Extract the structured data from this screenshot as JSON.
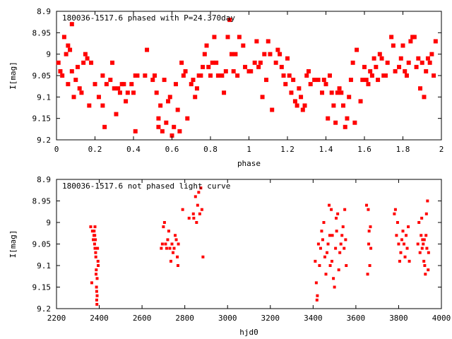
{
  "colors": {
    "points": "#ff0000",
    "axes": "#000000",
    "background": "#ffffff"
  },
  "chart_data": [
    {
      "type": "scatter",
      "title": "180036-1517.6 phased with P=24.370day",
      "xlabel": "phase",
      "ylabel": "I[mag]",
      "xlim": [
        0,
        2
      ],
      "ylim": [
        8.9,
        9.2
      ],
      "y_inverted": true,
      "grid": false,
      "x_ticks": [
        "0",
        "0.2",
        "0.4",
        "0.6",
        "0.8",
        "1",
        "1.2",
        "1.4",
        "1.6",
        "1.8",
        "2"
      ],
      "y_ticks": [
        "8.9",
        "8.95",
        "9",
        "9.05",
        "9.1",
        "9.15",
        "9.2"
      ],
      "points": [
        [
          0.01,
          9.02
        ],
        [
          0.02,
          9.04
        ],
        [
          0.03,
          9.05
        ],
        [
          0.04,
          8.96
        ],
        [
          0.05,
          9.0
        ],
        [
          0.06,
          8.98
        ],
        [
          0.06,
          9.07
        ],
        [
          0.07,
          8.99
        ],
        [
          0.08,
          8.93
        ],
        [
          0.08,
          9.04
        ],
        [
          0.09,
          9.1
        ],
        [
          0.1,
          9.06
        ],
        [
          0.11,
          9.03
        ],
        [
          0.12,
          9.08
        ],
        [
          0.13,
          9.09
        ],
        [
          0.14,
          9.02
        ],
        [
          0.15,
          9.0
        ],
        [
          0.16,
          9.01
        ],
        [
          0.17,
          9.12
        ],
        [
          0.18,
          9.02
        ],
        [
          0.2,
          9.07
        ],
        [
          0.22,
          9.1
        ],
        [
          0.24,
          9.05
        ],
        [
          0.24,
          9.12
        ],
        [
          0.25,
          9.17
        ],
        [
          0.26,
          9.07
        ],
        [
          0.28,
          9.06
        ],
        [
          0.29,
          9.02
        ],
        [
          0.3,
          9.08
        ],
        [
          0.31,
          9.14
        ],
        [
          0.32,
          9.08
        ],
        [
          0.33,
          9.09
        ],
        [
          0.34,
          9.07
        ],
        [
          0.35,
          9.07
        ],
        [
          0.36,
          9.11
        ],
        [
          0.37,
          9.09
        ],
        [
          0.39,
          9.07
        ],
        [
          0.4,
          9.09
        ],
        [
          0.41,
          9.05
        ],
        [
          0.41,
          9.18
        ],
        [
          0.42,
          9.05
        ],
        [
          0.46,
          9.05
        ],
        [
          0.47,
          8.99
        ],
        [
          0.5,
          9.06
        ],
        [
          0.51,
          9.05
        ],
        [
          0.52,
          9.09
        ],
        [
          0.53,
          9.15
        ],
        [
          0.53,
          9.17
        ],
        [
          0.54,
          9.12
        ],
        [
          0.55,
          9.18
        ],
        [
          0.56,
          9.06
        ],
        [
          0.57,
          9.16
        ],
        [
          0.58,
          9.11
        ],
        [
          0.59,
          9.1
        ],
        [
          0.6,
          9.19
        ],
        [
          0.61,
          9.17
        ],
        [
          0.62,
          9.07
        ],
        [
          0.63,
          9.13
        ],
        [
          0.64,
          9.18
        ],
        [
          0.65,
          9.02
        ],
        [
          0.66,
          9.05
        ],
        [
          0.67,
          9.04
        ],
        [
          0.68,
          9.15
        ],
        [
          0.7,
          9.07
        ],
        [
          0.71,
          9.06
        ],
        [
          0.72,
          9.1
        ],
        [
          0.73,
          9.08
        ],
        [
          0.74,
          9.05
        ],
        [
          0.75,
          9.05
        ],
        [
          0.76,
          9.03
        ],
        [
          0.77,
          9.0
        ],
        [
          0.78,
          8.98
        ],
        [
          0.79,
          9.03
        ],
        [
          0.8,
          9.05
        ],
        [
          0.81,
          9.02
        ],
        [
          0.82,
          8.96
        ],
        [
          0.83,
          9.02
        ],
        [
          0.84,
          9.05
        ],
        [
          0.85,
          9.05
        ],
        [
          0.86,
          9.05
        ],
        [
          0.87,
          9.09
        ],
        [
          0.88,
          9.04
        ],
        [
          0.89,
          8.96
        ],
        [
          0.9,
          8.92
        ],
        [
          0.91,
          9.0
        ],
        [
          0.92,
          9.04
        ],
        [
          0.93,
          9.0
        ],
        [
          0.94,
          9.05
        ],
        [
          0.95,
          8.96
        ],
        [
          0.97,
          8.98
        ],
        [
          0.98,
          9.03
        ],
        [
          1.0,
          9.04
        ],
        [
          1.01,
          9.04
        ],
        [
          1.03,
          9.02
        ],
        [
          1.04,
          8.97
        ],
        [
          1.05,
          9.03
        ],
        [
          1.06,
          9.02
        ],
        [
          1.07,
          9.1
        ],
        [
          1.08,
          9.0
        ],
        [
          1.09,
          9.06
        ],
        [
          1.1,
          8.97
        ],
        [
          1.11,
          9.0
        ],
        [
          1.12,
          9.13
        ],
        [
          1.14,
          9.02
        ],
        [
          1.15,
          8.99
        ],
        [
          1.16,
          9.0
        ],
        [
          1.17,
          9.03
        ],
        [
          1.18,
          9.05
        ],
        [
          1.19,
          9.07
        ],
        [
          1.2,
          9.01
        ],
        [
          1.21,
          9.05
        ],
        [
          1.22,
          9.09
        ],
        [
          1.23,
          9.06
        ],
        [
          1.24,
          9.11
        ],
        [
          1.25,
          9.12
        ],
        [
          1.26,
          9.08
        ],
        [
          1.27,
          9.1
        ],
        [
          1.28,
          9.13
        ],
        [
          1.29,
          9.12
        ],
        [
          1.3,
          9.05
        ],
        [
          1.31,
          9.04
        ],
        [
          1.32,
          9.07
        ],
        [
          1.34,
          9.06
        ],
        [
          1.36,
          9.06
        ],
        [
          1.38,
          9.09
        ],
        [
          1.39,
          9.06
        ],
        [
          1.4,
          9.07
        ],
        [
          1.41,
          9.15
        ],
        [
          1.42,
          9.05
        ],
        [
          1.43,
          9.09
        ],
        [
          1.44,
          9.12
        ],
        [
          1.45,
          9.16
        ],
        [
          1.46,
          9.09
        ],
        [
          1.47,
          9.08
        ],
        [
          1.48,
          9.09
        ],
        [
          1.49,
          9.12
        ],
        [
          1.5,
          9.17
        ],
        [
          1.51,
          9.15
        ],
        [
          1.52,
          9.1
        ],
        [
          1.53,
          9.06
        ],
        [
          1.54,
          9.02
        ],
        [
          1.55,
          9.16
        ],
        [
          1.56,
          8.99
        ],
        [
          1.58,
          9.11
        ],
        [
          1.59,
          9.06
        ],
        [
          1.6,
          9.03
        ],
        [
          1.61,
          9.06
        ],
        [
          1.62,
          9.07
        ],
        [
          1.63,
          9.04
        ],
        [
          1.64,
          9.05
        ],
        [
          1.65,
          9.01
        ],
        [
          1.66,
          9.03
        ],
        [
          1.67,
          9.06
        ],
        [
          1.68,
          9.0
        ],
        [
          1.69,
          9.01
        ],
        [
          1.7,
          9.05
        ],
        [
          1.71,
          9.05
        ],
        [
          1.72,
          9.02
        ],
        [
          1.74,
          8.96
        ],
        [
          1.75,
          8.98
        ],
        [
          1.76,
          9.04
        ],
        [
          1.78,
          9.03
        ],
        [
          1.79,
          9.01
        ],
        [
          1.8,
          8.98
        ],
        [
          1.81,
          9.04
        ],
        [
          1.82,
          9.05
        ],
        [
          1.83,
          9.02
        ],
        [
          1.84,
          8.97
        ],
        [
          1.85,
          8.96
        ],
        [
          1.86,
          8.96
        ],
        [
          1.87,
          9.03
        ],
        [
          1.88,
          9.01
        ],
        [
          1.89,
          9.08
        ],
        [
          1.9,
          9.02
        ],
        [
          1.91,
          9.1
        ],
        [
          1.92,
          9.04
        ],
        [
          1.93,
          9.01
        ],
        [
          1.94,
          9.02
        ],
        [
          1.95,
          9.0
        ],
        [
          1.96,
          9.05
        ],
        [
          1.97,
          8.97
        ]
      ]
    },
    {
      "type": "scatter",
      "title": "180036-1517.6 not phased light curve",
      "xlabel": "hjd0",
      "ylabel": "I[mag]",
      "xlim": [
        2200,
        4000
      ],
      "ylim": [
        8.9,
        9.2
      ],
      "y_inverted": true,
      "grid": false,
      "x_ticks": [
        "2200",
        "2400",
        "2600",
        "2800",
        "3000",
        "3200",
        "3400",
        "3600",
        "3800",
        "4000"
      ],
      "y_ticks": [
        "8.9",
        "8.95",
        "9",
        "9.05",
        "9.1",
        "9.15",
        "9.2"
      ],
      "points": [
        [
          2360,
          9.01
        ],
        [
          2365,
          9.14
        ],
        [
          2368,
          9.02
        ],
        [
          2372,
          9.04
        ],
        [
          2375,
          9.03
        ],
        [
          2378,
          9.05
        ],
        [
          2380,
          9.06
        ],
        [
          2383,
          9.07
        ],
        [
          2385,
          9.12
        ],
        [
          2387,
          9.15
        ],
        [
          2388,
          9.18
        ],
        [
          2389,
          9.19
        ],
        [
          2390,
          9.17
        ],
        [
          2392,
          9.06
        ],
        [
          2395,
          9.1
        ],
        [
          2380,
          9.01
        ],
        [
          2382,
          9.04
        ],
        [
          2384,
          9.08
        ],
        [
          2386,
          9.11
        ],
        [
          2388,
          9.16
        ],
        [
          2390,
          9.13
        ],
        [
          2394,
          9.09
        ],
        [
          2376,
          9.02
        ],
        [
          2379,
          9.03
        ],
        [
          2690,
          9.06
        ],
        [
          2695,
          9.05
        ],
        [
          2700,
          9.01
        ],
        [
          2705,
          9.0
        ],
        [
          2710,
          9.05
        ],
        [
          2715,
          9.06
        ],
        [
          2720,
          9.04
        ],
        [
          2725,
          9.02
        ],
        [
          2730,
          9.06
        ],
        [
          2735,
          9.09
        ],
        [
          2740,
          9.05
        ],
        [
          2745,
          9.07
        ],
        [
          2750,
          9.06
        ],
        [
          2755,
          9.03
        ],
        [
          2760,
          9.04
        ],
        [
          2765,
          9.08
        ],
        [
          2768,
          9.1
        ],
        [
          2770,
          9.05
        ],
        [
          2790,
          8.97
        ],
        [
          2820,
          8.99
        ],
        [
          2840,
          8.98
        ],
        [
          2850,
          8.94
        ],
        [
          2860,
          8.96
        ],
        [
          2865,
          8.93
        ],
        [
          2870,
          8.98
        ],
        [
          2875,
          8.92
        ],
        [
          2880,
          8.97
        ],
        [
          2885,
          9.08
        ],
        [
          2842,
          8.99
        ],
        [
          2855,
          9.0
        ],
        [
          3410,
          9.09
        ],
        [
          3415,
          9.14
        ],
        [
          3418,
          9.18
        ],
        [
          3420,
          9.17
        ],
        [
          3425,
          9.05
        ],
        [
          3430,
          9.1
        ],
        [
          3435,
          9.06
        ],
        [
          3440,
          9.02
        ],
        [
          3445,
          9.04
        ],
        [
          3450,
          9.0
        ],
        [
          3455,
          9.08
        ],
        [
          3460,
          9.12
        ],
        [
          3465,
          9.07
        ],
        [
          3470,
          9.05
        ],
        [
          3475,
          8.96
        ],
        [
          3478,
          9.03
        ],
        [
          3480,
          9.1
        ],
        [
          3485,
          8.97
        ],
        [
          3488,
          9.09
        ],
        [
          3490,
          9.03
        ],
        [
          3495,
          9.13
        ],
        [
          3500,
          9.15
        ],
        [
          3505,
          9.06
        ],
        [
          3508,
          8.99
        ],
        [
          3510,
          9.02
        ],
        [
          3515,
          8.98
        ],
        [
          3520,
          9.11
        ],
        [
          3525,
          9.07
        ],
        [
          3530,
          9.05
        ],
        [
          3535,
          9.03
        ],
        [
          3540,
          9.01
        ],
        [
          3545,
          9.06
        ],
        [
          3548,
          8.97
        ],
        [
          3552,
          9.04
        ],
        [
          3555,
          9.1
        ],
        [
          3650,
          8.96
        ],
        [
          3655,
          9.12
        ],
        [
          3658,
          8.97
        ],
        [
          3660,
          9.05
        ],
        [
          3662,
          9.02
        ],
        [
          3665,
          9.1
        ],
        [
          3668,
          9.01
        ],
        [
          3670,
          9.06
        ],
        [
          3780,
          8.98
        ],
        [
          3785,
          8.97
        ],
        [
          3790,
          9.03
        ],
        [
          3795,
          9.0
        ],
        [
          3800,
          9.05
        ],
        [
          3805,
          9.09
        ],
        [
          3810,
          9.07
        ],
        [
          3815,
          9.04
        ],
        [
          3820,
          9.02
        ],
        [
          3825,
          9.05
        ],
        [
          3830,
          9.08
        ],
        [
          3835,
          9.03
        ],
        [
          3840,
          9.06
        ],
        [
          3845,
          9.01
        ],
        [
          3850,
          9.09
        ],
        [
          3890,
          9.05
        ],
        [
          3895,
          9.0
        ],
        [
          3900,
          9.07
        ],
        [
          3905,
          9.03
        ],
        [
          3908,
          8.99
        ],
        [
          3910,
          9.06
        ],
        [
          3912,
          9.04
        ],
        [
          3915,
          9.05
        ],
        [
          3918,
          9.09
        ],
        [
          3920,
          9.04
        ],
        [
          3922,
          9.1
        ],
        [
          3925,
          9.12
        ],
        [
          3928,
          9.03
        ],
        [
          3930,
          8.98
        ],
        [
          3932,
          9.06
        ],
        [
          3935,
          8.95
        ],
        [
          3938,
          9.11
        ],
        [
          3940,
          9.07
        ]
      ]
    }
  ]
}
